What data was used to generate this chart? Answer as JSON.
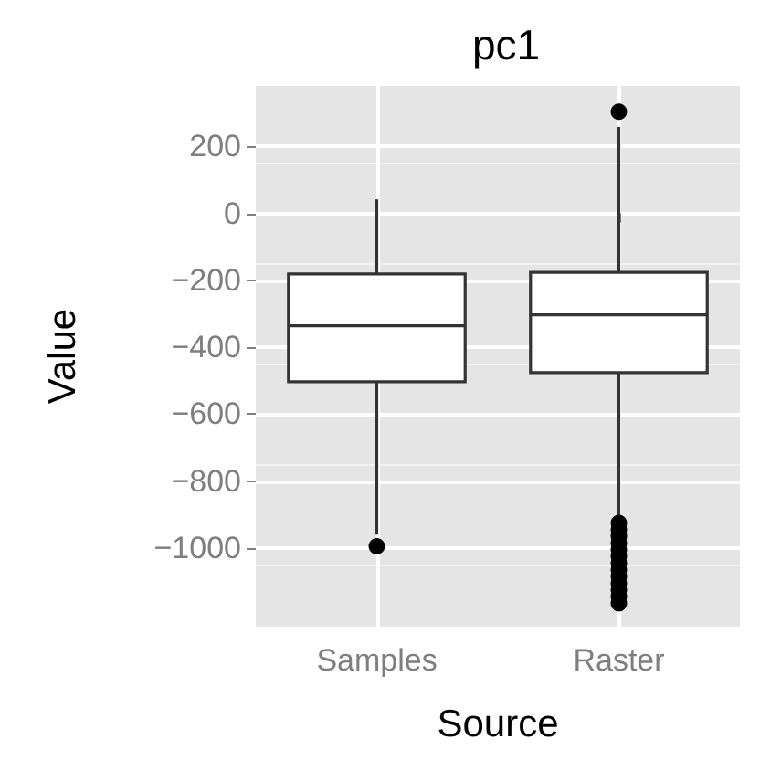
{
  "chart_data": {
    "type": "box",
    "title": "pc1",
    "xlabel": "Source",
    "ylabel": "Value",
    "categories": [
      "Samples",
      "Raster"
    ],
    "boxes": [
      {
        "low": -960,
        "q1": -503,
        "median": -336,
        "q3": -181,
        "high": 42,
        "outliers": [
          -995
        ]
      },
      {
        "low": -915,
        "q1": -476,
        "median": -303,
        "q3": -176,
        "high": 258,
        "outliers": [
          304,
          -925,
          -945,
          -965,
          -985,
          -1005,
          -1025,
          -1045,
          -1065,
          -1085,
          -1105,
          -1125,
          -1145,
          -1165
        ]
      }
    ],
    "color": "#333333",
    "ylim": [
      -1235,
      381
    ],
    "yticks": [
      -1000,
      -800,
      -600,
      -400,
      -200,
      0,
      200
    ],
    "grid": true
  }
}
